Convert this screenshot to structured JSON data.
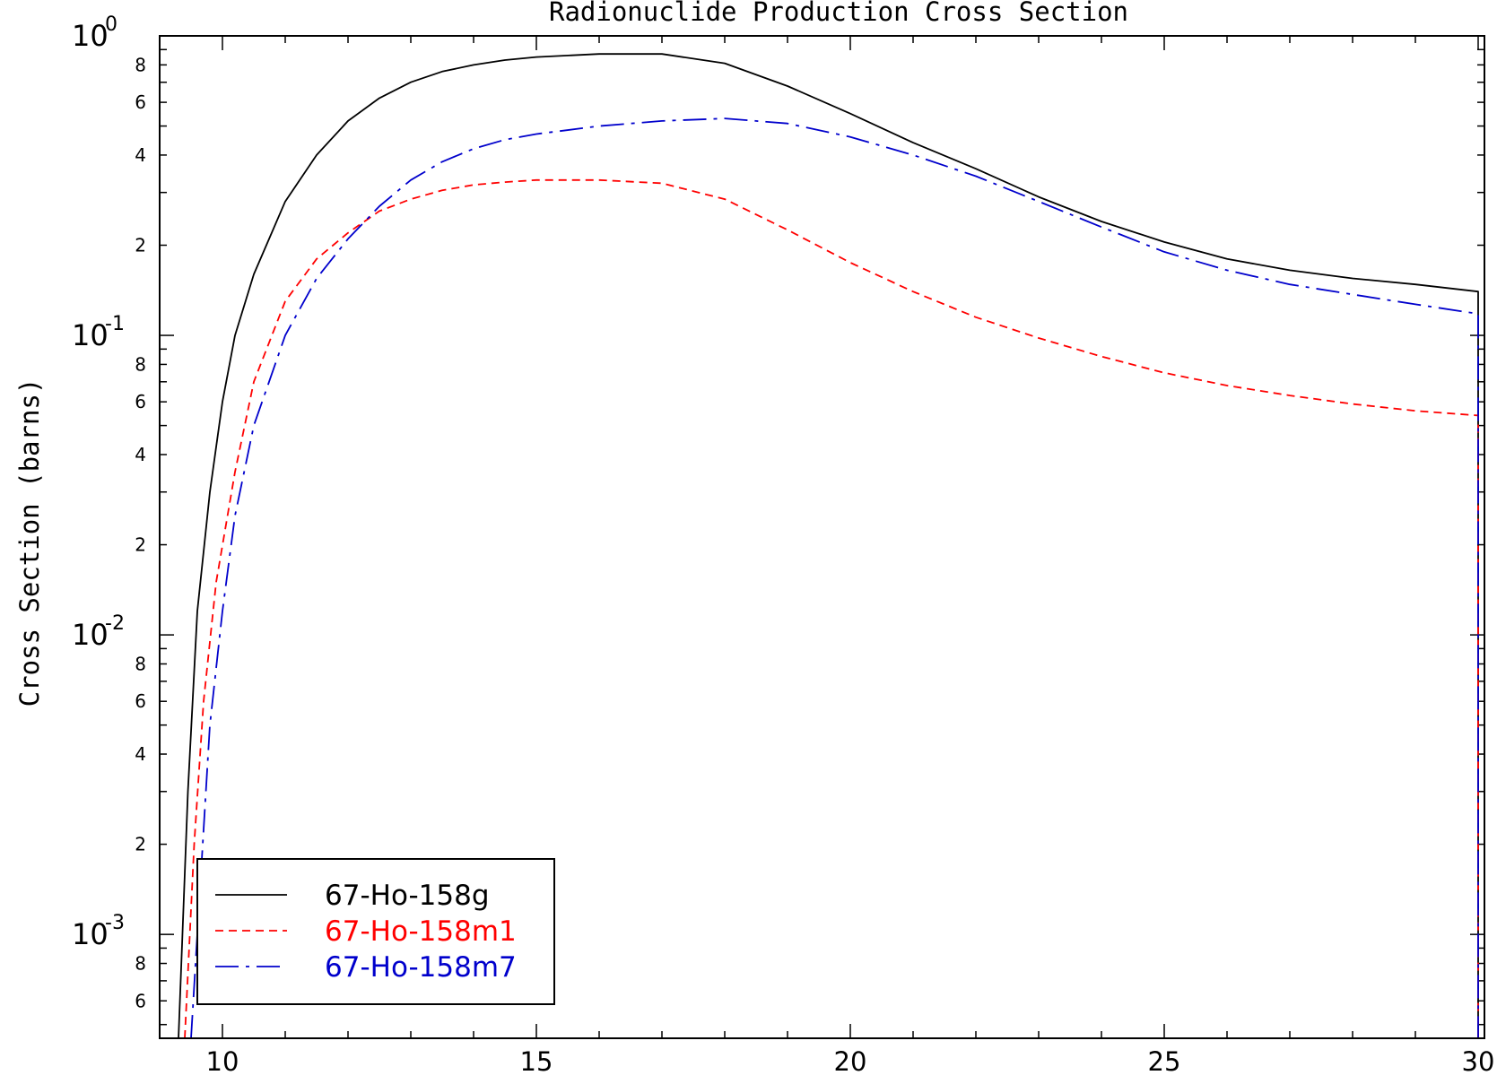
{
  "chart_data": {
    "type": "line",
    "title": "Radionuclide Production Cross Section",
    "xlabel": "",
    "ylabel": "Cross Section (barns)",
    "xlim": [
      9,
      30.1
    ],
    "ylim": [
      0.00045,
      1.0
    ],
    "yscale": "log",
    "x_ticks": [
      "10",
      "15",
      "20",
      "25",
      "30"
    ],
    "y_decade_ticks": [
      {
        "value": 1.0,
        "base": "10",
        "exp": "0"
      },
      {
        "value": 0.1,
        "base": "10",
        "exp": "-1"
      },
      {
        "value": 0.01,
        "base": "10",
        "exp": "-2"
      },
      {
        "value": 0.001,
        "base": "10",
        "exp": "-3"
      }
    ],
    "y_minor_labels": [
      "2",
      "4",
      "6",
      "8"
    ],
    "legend_position": "bottom-left",
    "series": [
      {
        "name": "67-Ho-158g",
        "color": "#000000",
        "dash": "solid",
        "x": [
          9.3,
          9.45,
          9.6,
          9.8,
          10.0,
          10.2,
          10.5,
          11.0,
          11.5,
          12.0,
          12.5,
          13.0,
          13.5,
          14.0,
          14.5,
          15.0,
          16.0,
          17.0,
          18.0,
          19.0,
          20.0,
          21.0,
          22.0,
          23.0,
          24.0,
          25.0,
          26.0,
          27.0,
          28.0,
          29.0,
          30.0,
          30.0
        ],
        "y": [
          0.00045,
          0.003,
          0.012,
          0.03,
          0.06,
          0.1,
          0.16,
          0.28,
          0.4,
          0.52,
          0.62,
          0.7,
          0.76,
          0.8,
          0.83,
          0.85,
          0.87,
          0.87,
          0.81,
          0.68,
          0.55,
          0.44,
          0.36,
          0.29,
          0.24,
          0.205,
          0.18,
          0.165,
          0.155,
          0.148,
          0.14,
          0.00045
        ]
      },
      {
        "name": "67-Ho-158m1",
        "color": "#ff0000",
        "dash": "dashed",
        "x": [
          9.4,
          9.55,
          9.7,
          9.9,
          10.2,
          10.5,
          11.0,
          11.5,
          12.0,
          12.5,
          13.0,
          13.5,
          14.0,
          14.5,
          15.0,
          16.0,
          17.0,
          18.0,
          19.0,
          20.0,
          21.0,
          22.0,
          23.0,
          24.0,
          25.0,
          26.0,
          27.0,
          28.0,
          29.0,
          30.0,
          30.0
        ],
        "y": [
          0.00045,
          0.002,
          0.006,
          0.015,
          0.035,
          0.07,
          0.13,
          0.18,
          0.22,
          0.26,
          0.285,
          0.305,
          0.318,
          0.325,
          0.33,
          0.33,
          0.322,
          0.285,
          0.225,
          0.175,
          0.14,
          0.115,
          0.098,
          0.085,
          0.075,
          0.068,
          0.063,
          0.059,
          0.056,
          0.054,
          0.00045
        ]
      },
      {
        "name": "67-Ho-158m7",
        "color": "#0000cc",
        "dash": "dashdot",
        "x": [
          9.5,
          9.65,
          9.8,
          10.0,
          10.2,
          10.5,
          11.0,
          11.5,
          12.0,
          12.5,
          13.0,
          13.5,
          14.0,
          14.5,
          15.0,
          16.0,
          17.0,
          18.0,
          19.0,
          20.0,
          21.0,
          22.0,
          23.0,
          24.0,
          25.0,
          26.0,
          27.0,
          28.0,
          29.0,
          30.0,
          30.0
        ],
        "y": [
          0.00045,
          0.0015,
          0.005,
          0.012,
          0.025,
          0.05,
          0.1,
          0.155,
          0.21,
          0.27,
          0.33,
          0.38,
          0.42,
          0.45,
          0.47,
          0.5,
          0.52,
          0.53,
          0.51,
          0.46,
          0.4,
          0.34,
          0.28,
          0.23,
          0.19,
          0.165,
          0.148,
          0.137,
          0.127,
          0.118,
          0.00045
        ]
      }
    ]
  }
}
